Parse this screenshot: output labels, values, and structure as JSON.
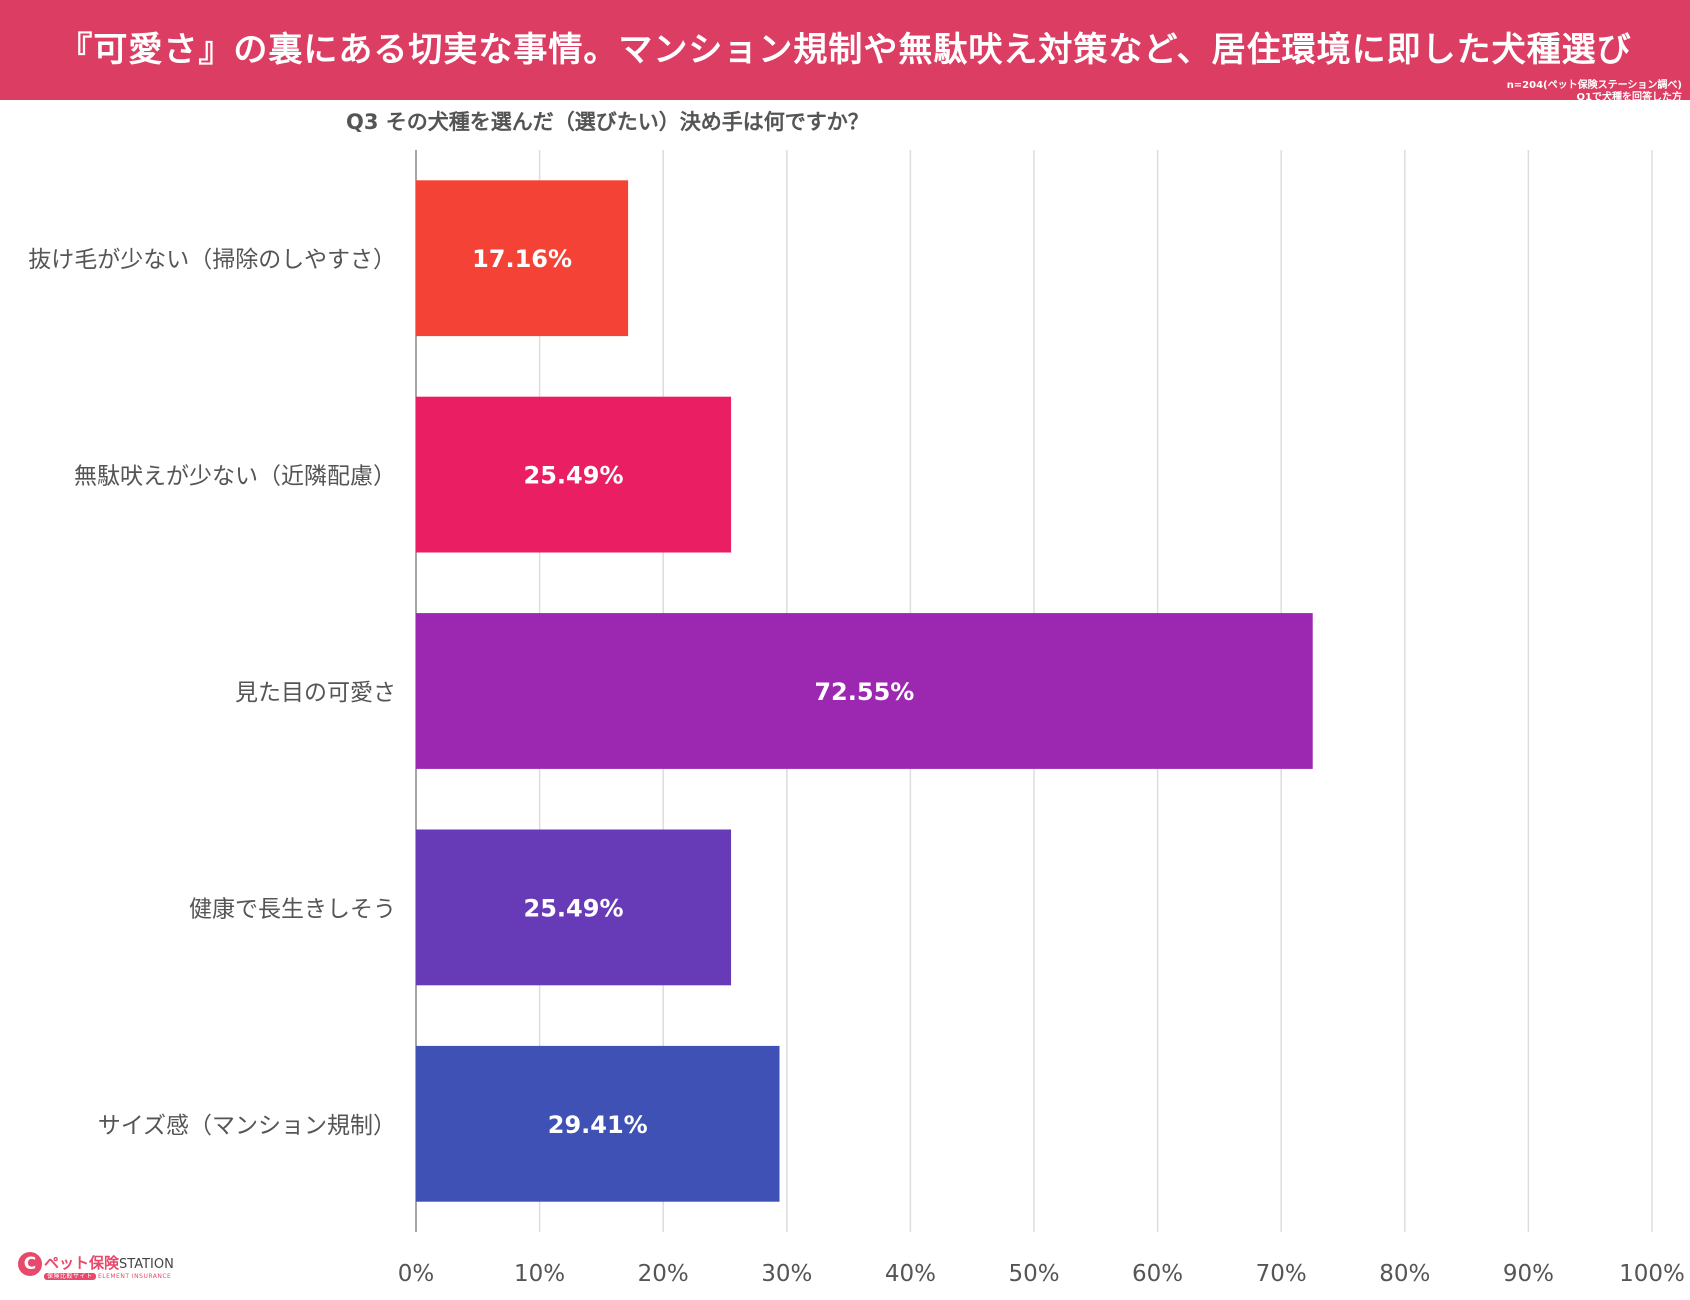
{
  "banner": {
    "title": "『可愛さ』の裏にある切実な事情。マンション規制や無駄吠え対策など、居住環境に即した犬種選び",
    "note_line1": "n=204(ペット保険ステーション調べ)",
    "note_line2": "Q1で犬種を回答した方"
  },
  "question": "Q3 その犬種を選んだ（選びたい）決め手は何ですか？",
  "logo": {
    "mark": "C",
    "name": "ペット保険",
    "station": "STATION",
    "sub_pill": "保険比較サイト",
    "sub_text": "ELEMENT INSURANCE"
  },
  "colors": {
    "banner": "#dc3d62",
    "grid": "#dddddd",
    "axis": "#888888"
  },
  "chart_data": {
    "type": "bar",
    "orientation": "horizontal",
    "title": "Q3 その犬種を選んだ（選びたい）決め手は何ですか？",
    "categories": [
      "抜け毛が少ない（掃除のしやすさ）",
      "無駄吠えが少ない（近隣配慮）",
      "見た目の可愛さ",
      "健康で長生きしそう",
      "サイズ感（マンション規制）"
    ],
    "values": [
      17.16,
      25.49,
      72.55,
      25.49,
      29.41
    ],
    "value_labels": [
      "17.16%",
      "25.49%",
      "72.55%",
      "25.49%",
      "29.41%"
    ],
    "bar_colors": [
      "#f44336",
      "#e91e63",
      "#9c27b0",
      "#673ab7",
      "#3f51b5"
    ],
    "xlim": [
      0,
      100
    ],
    "xticks": [
      "0%",
      "10%",
      "20%",
      "30%",
      "40%",
      "50%",
      "60%",
      "70%",
      "80%",
      "90%",
      "100%"
    ],
    "grid": true
  }
}
